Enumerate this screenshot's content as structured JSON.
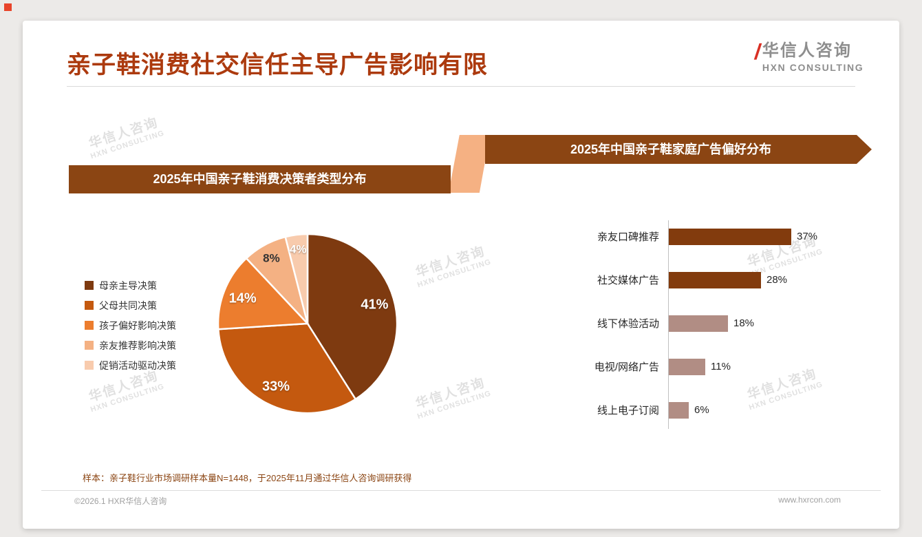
{
  "page": {
    "title": "亲子鞋消费社交信任主导广告影响有限",
    "footer_note": "样本：亲子鞋行业市场调研样本量N=1448，于2025年11月通过华信人咨询调研获得",
    "copyright": "©2026.1 HXR华信人咨询",
    "website": "www.hxrcon.com"
  },
  "logo": {
    "name_cn": "华信人咨询",
    "name_en": "HXN CONSULTING"
  },
  "watermark": {
    "line1": "华信人咨询",
    "line2": "HXN CONSULTING"
  },
  "colors": {
    "title": "#AC3A0E",
    "banner": "#8B4513",
    "connector": "#F5B183",
    "bar_dark": "#823B0D",
    "bar_muted": "#B18D84"
  },
  "chart_data": [
    {
      "type": "pie",
      "title": "2025年中国亲子鞋消费决策者类型分布",
      "labels": [
        "母亲主导决策",
        "父母共同决策",
        "孩子偏好影响决策",
        "亲友推荐影响决策",
        "促销活动驱动决策"
      ],
      "values": [
        41,
        33,
        14,
        8,
        4
      ],
      "value_suffix": "%",
      "colors": [
        "#7E3A10",
        "#C4590F",
        "#EC7D2E",
        "#F4B183",
        "#F8CBAD"
      ],
      "label_colors": [
        "#ffffff",
        "#ffffff",
        "#ffffff",
        "#333333",
        "#ffffff"
      ],
      "legend_position": "left",
      "start_angle": "top",
      "direction": "clockwise"
    },
    {
      "type": "bar",
      "orientation": "horizontal",
      "title": "2025年中国亲子鞋家庭广告偏好分布",
      "categories": [
        "亲友口碑推荐",
        "社交媒体广告",
        "线下体验活动",
        "电视/网络广告",
        "线上电子订阅"
      ],
      "values": [
        37,
        28,
        18,
        11,
        6
      ],
      "value_suffix": "%",
      "bar_colors": [
        "#823B0D",
        "#823B0D",
        "#B18D84",
        "#B18D84",
        "#B18D84"
      ],
      "xlim": [
        0,
        40
      ],
      "grid": false,
      "legend_position": "none"
    }
  ]
}
